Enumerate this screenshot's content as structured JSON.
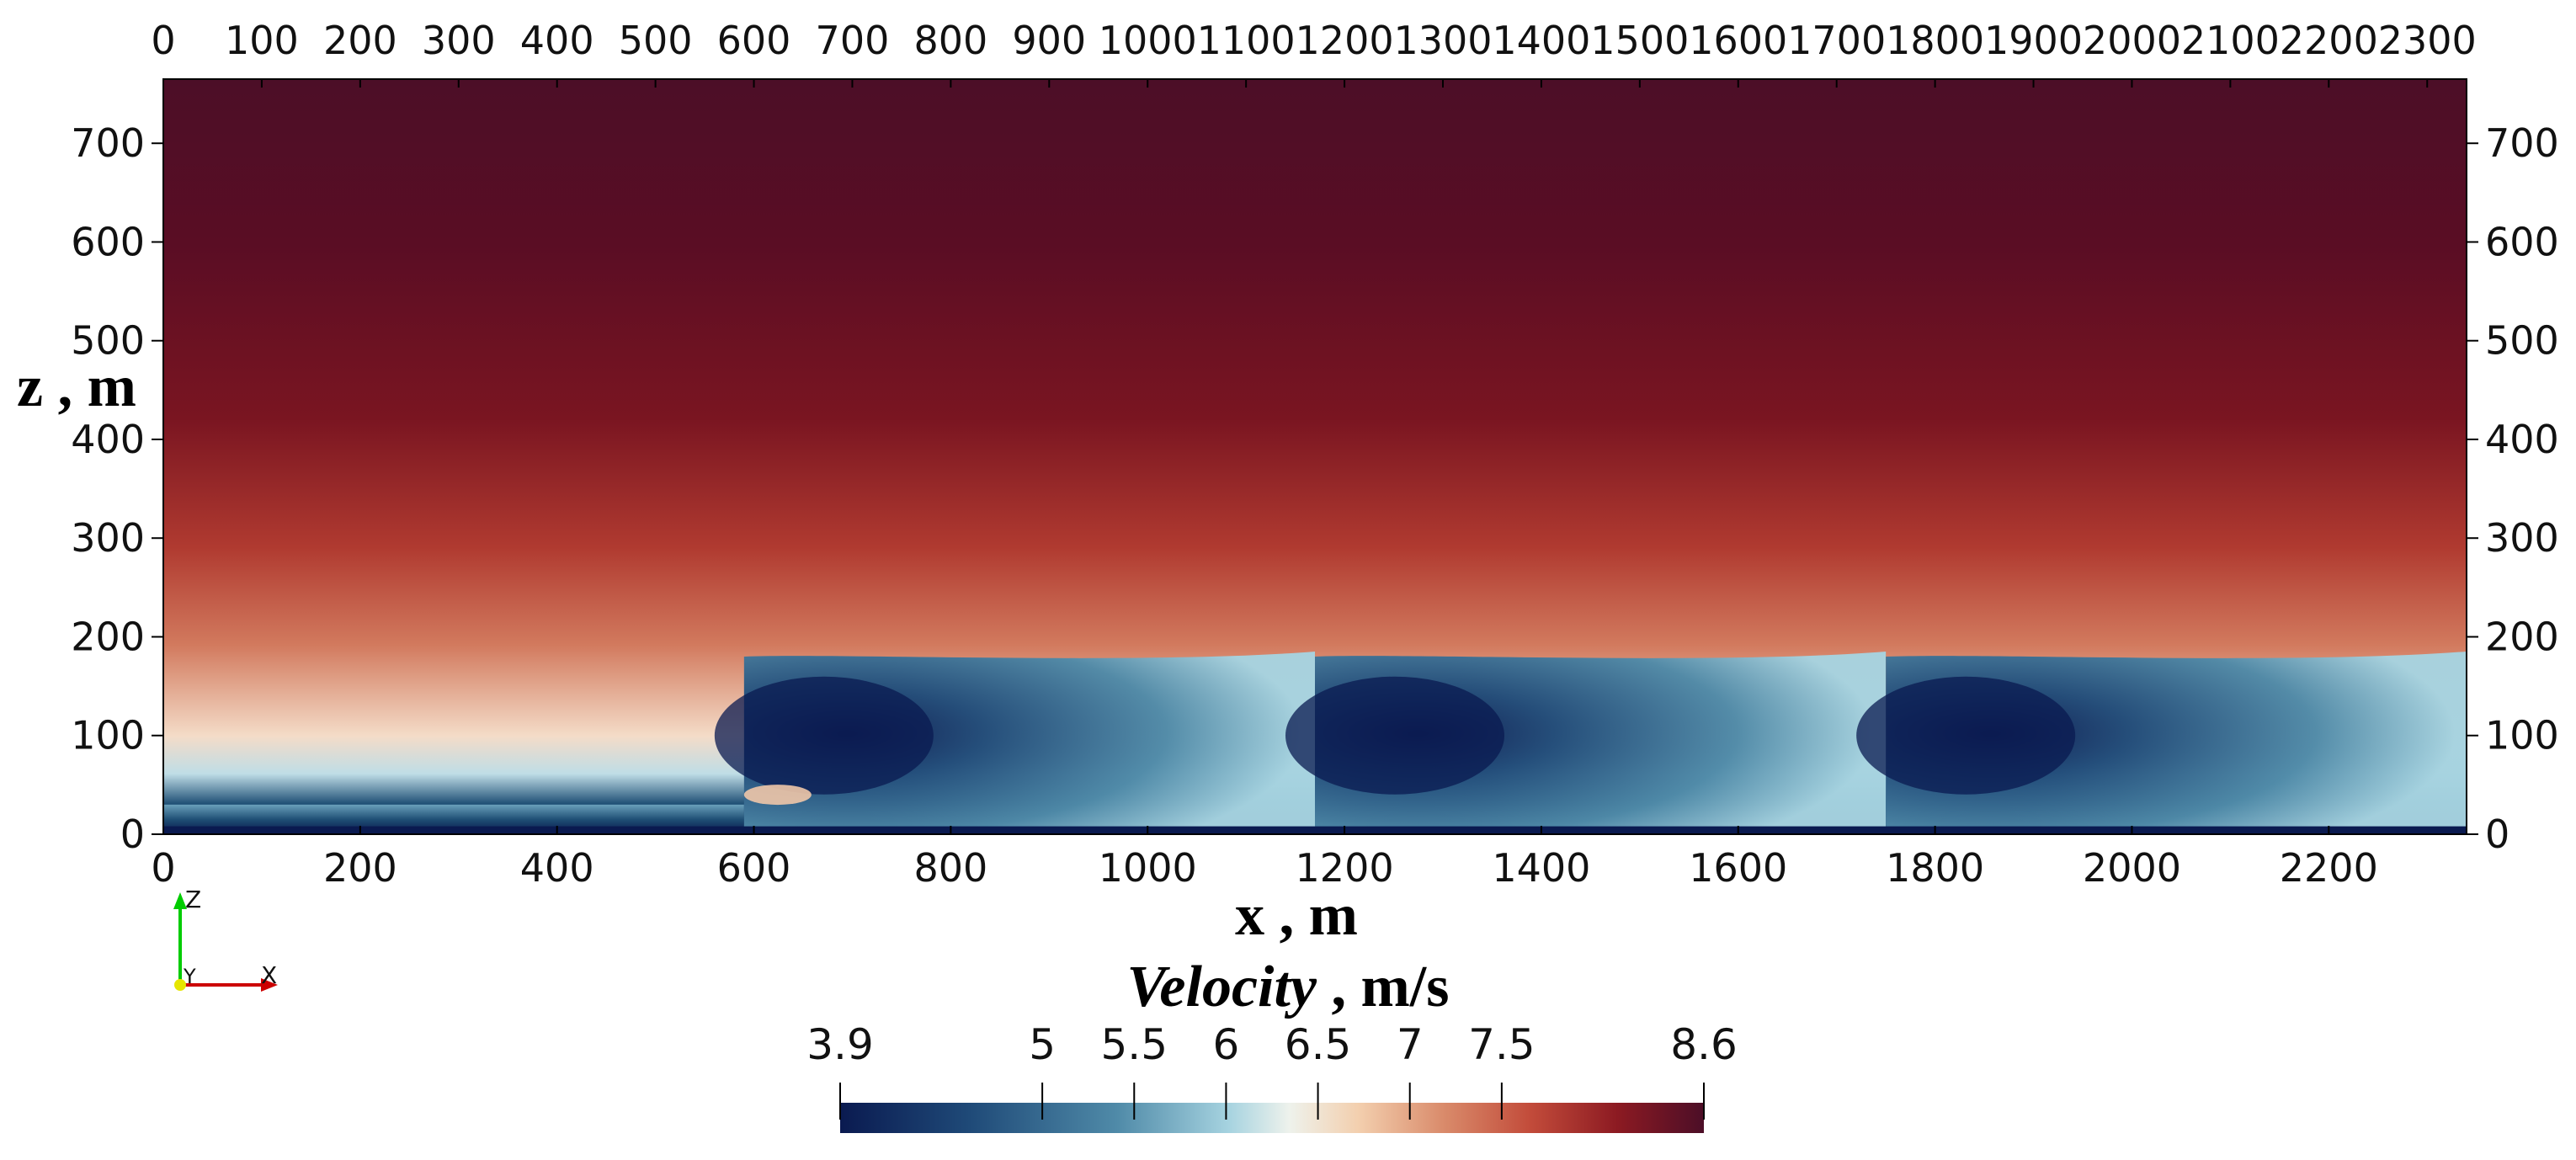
{
  "chart_data": {
    "type": "heatmap",
    "title": "",
    "field": "Velocity",
    "xlabel": "x , m",
    "ylabel": "z , m",
    "x_top_ticks": [
      0,
      100,
      200,
      300,
      400,
      500,
      600,
      700,
      800,
      900,
      1000,
      1100,
      1200,
      1300,
      1400,
      1500,
      1600,
      1700,
      1800,
      1900,
      2000,
      2100,
      2200,
      2300
    ],
    "x_bottom_ticks": [
      0,
      200,
      400,
      600,
      800,
      1000,
      1200,
      1400,
      1600,
      1800,
      2000,
      2200
    ],
    "y_ticks": [
      0,
      100,
      200,
      300,
      400,
      500,
      600,
      700
    ],
    "xlim": [
      0,
      2340
    ],
    "ylim": [
      0,
      765
    ],
    "colorbar": {
      "title_italic": "Velocity",
      "title_units": " , m/s",
      "range": [
        3.9,
        8.6
      ],
      "ticks": [
        3.9,
        5,
        5.5,
        6,
        6.5,
        7,
        7.5,
        8.6
      ],
      "tick_labels": [
        "3.9",
        "5",
        "5.5",
        "6",
        "6.5",
        "7",
        "7.5",
        "8.6"
      ],
      "colormap": "blue-white-red"
    },
    "turbines_x": [
      590,
      1170,
      1750
    ],
    "hub_height": 100,
    "wake_top": 180,
    "orientation_axes": [
      "Z",
      "Y",
      "X"
    ]
  },
  "colors": {
    "background": "#ffffff",
    "axis": "#000000",
    "triad_x": "#cc0000",
    "triad_y": "#e6e600",
    "triad_z": "#00cc00"
  }
}
